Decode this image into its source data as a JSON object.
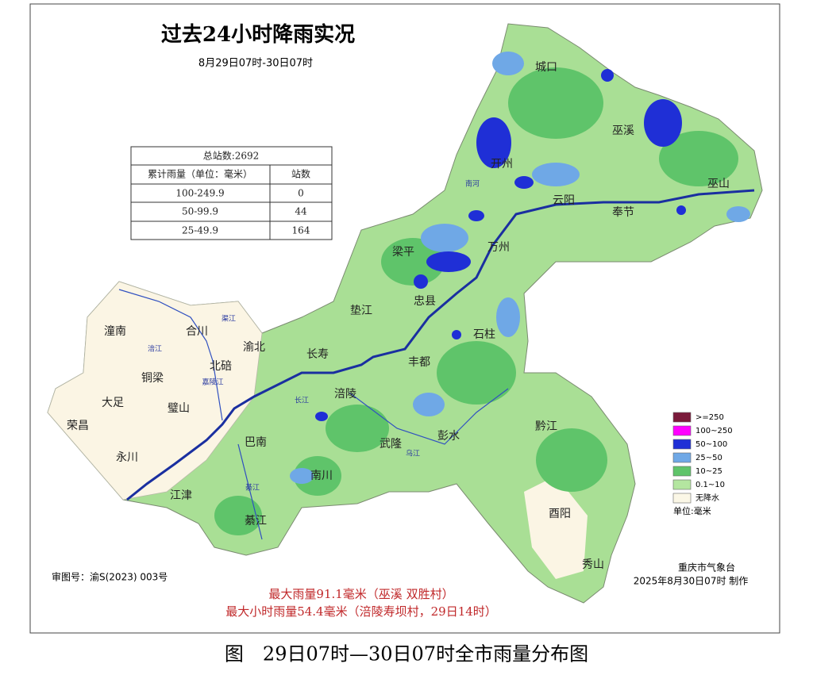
{
  "title": "过去24小时降雨实况",
  "subtitle": "8月29日07时-30日07时",
  "table": {
    "caption": "总站数:2692",
    "header": [
      "累计雨量（单位：毫米）",
      "站数"
    ],
    "rows": [
      [
        "100-249.9",
        "0"
      ],
      [
        "50-99.9",
        "44"
      ],
      [
        "25-49.9",
        "164"
      ]
    ]
  },
  "districts": [
    "城口",
    "巫溪",
    "开州",
    "巫山",
    "云阳",
    "奉节",
    "梁平",
    "万州",
    "忠县",
    "垫江",
    "石柱",
    "长寿",
    "丰都",
    "渝北",
    "北碚",
    "合川",
    "潼南",
    "铜梁",
    "大足",
    "璧山",
    "荣昌",
    "永川",
    "涪陵",
    "巴南",
    "武隆",
    "彭水",
    "黔江",
    "南川",
    "江津",
    "綦江",
    "酉阳",
    "秀山"
  ],
  "rivers": [
    "南河",
    "长江",
    "乌江",
    "嘉陵江",
    "綦江",
    "涪江",
    "渠江"
  ],
  "legend": {
    "items": [
      {
        "label": ">=250",
        "color": "#7a1a3a"
      },
      {
        "label": "100~250",
        "color": "#ff00ff"
      },
      {
        "label": "50~100",
        "color": "#1f2fd6"
      },
      {
        "label": "25~50",
        "color": "#6fa8e6"
      },
      {
        "label": "10~25",
        "color": "#5fc46a"
      },
      {
        "label": "0.1~10",
        "color": "#b4e6a0"
      },
      {
        "label": "无降水",
        "color": "#fbf7e6"
      }
    ],
    "unit": "单位:毫米"
  },
  "credit": {
    "agency": "重庆市气象台",
    "time": "2025年8月30日07时 制作"
  },
  "review_number": "审图号：渝S(2023) 003号",
  "notes": [
    "最大雨量91.1毫米（巫溪 双胜村）",
    "最大小时雨量54.4毫米（涪陵寿坝村，29日14时）"
  ],
  "caption": "图　29日07时—30日07时全市雨量分布图"
}
